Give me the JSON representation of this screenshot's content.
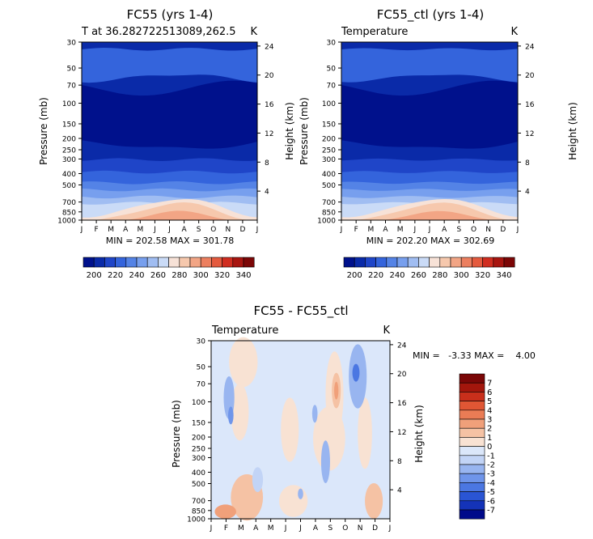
{
  "colors": {
    "temp_scale": [
      "#00118c",
      "#0a2aa8",
      "#1f45c8",
      "#3464dc",
      "#5483e6",
      "#779fee",
      "#a0bdf2",
      "#cadbf7",
      "#f7e2d7",
      "#f6c8ad",
      "#f2a585",
      "#ec7f5f",
      "#e45a3e",
      "#d02d20",
      "#a81510",
      "#7c0606"
    ],
    "diff_scale": [
      "#000a8a",
      "#1433b8",
      "#2a55d4",
      "#4b77e2",
      "#6f95ea",
      "#98b5f0",
      "#c2d4f6",
      "#dbe7fa",
      "#f8e2d3",
      "#f5c2a4",
      "#f0a07a",
      "#ea7c55",
      "#e05634",
      "#c92f1b",
      "#a3160c",
      "#7a0707"
    ]
  },
  "chart_data": [
    {
      "type": "heatmap",
      "name": "fc55",
      "title": "FC55 (yrs 1-4)",
      "subtitle": "T at 36.282722513089,262.5",
      "units": "K",
      "ylabel": "Pressure (mb)",
      "y2label": "Height (km)",
      "x_ticks": [
        "J",
        "F",
        "M",
        "A",
        "M",
        "J",
        "J",
        "A",
        "S",
        "O",
        "N",
        "D",
        "J"
      ],
      "y_ticks": [
        "30",
        "50",
        "70",
        "100",
        "150",
        "200",
        "250",
        "300",
        "400",
        "500",
        "700",
        "850",
        "1000"
      ],
      "y2_ticks": [
        "24",
        "20",
        "16",
        "12",
        "8",
        "4"
      ],
      "stats": "MIN = 202.58 MAX = 301.78",
      "min": 202.58,
      "max": 301.78,
      "colorbar_labels": [
        "200",
        "220",
        "240",
        "260",
        "280",
        "300",
        "320",
        "340"
      ]
    },
    {
      "type": "heatmap",
      "name": "fc55_ctl",
      "title": "FC55_ctl (yrs 1-4)",
      "subtitle": "Temperature",
      "units": "K",
      "ylabel": "Pressure (mb)",
      "y2label": "Height (km)",
      "x_ticks": [
        "J",
        "F",
        "M",
        "A",
        "M",
        "J",
        "J",
        "A",
        "S",
        "O",
        "N",
        "D",
        "J"
      ],
      "y_ticks": [
        "30",
        "50",
        "70",
        "100",
        "150",
        "200",
        "250",
        "300",
        "400",
        "500",
        "700",
        "850",
        "1000"
      ],
      "y2_ticks": [
        "24",
        "20",
        "16",
        "12",
        "8",
        "4"
      ],
      "stats": "MIN = 202.20 MAX = 302.69",
      "min": 202.2,
      "max": 302.69,
      "colorbar_labels": [
        "200",
        "220",
        "240",
        "260",
        "280",
        "300",
        "320",
        "340"
      ]
    },
    {
      "type": "heatmap",
      "name": "diff",
      "title": "FC55 - FC55_ctl",
      "subtitle": "Temperature",
      "units": "K",
      "ylabel": "Pressure (mb)",
      "y2label": "Height (km)",
      "x_ticks": [
        "J",
        "F",
        "M",
        "A",
        "M",
        "J",
        "J",
        "A",
        "S",
        "O",
        "N",
        "D",
        "J"
      ],
      "y_ticks": [
        "30",
        "50",
        "70",
        "100",
        "150",
        "200",
        "250",
        "300",
        "400",
        "500",
        "700",
        "850",
        "1000"
      ],
      "y2_ticks": [
        "24",
        "20",
        "16",
        "12",
        "8",
        "4"
      ],
      "stats": "MIN =   -3.33 MAX =    4.00",
      "min": -3.33,
      "max": 4.0,
      "colorbar_labels": [
        "7",
        "6",
        "5",
        "4",
        "3",
        "2",
        "1",
        "0",
        "-1",
        "-2",
        "-3",
        "-4",
        "-5",
        "-6",
        "-7"
      ]
    }
  ]
}
